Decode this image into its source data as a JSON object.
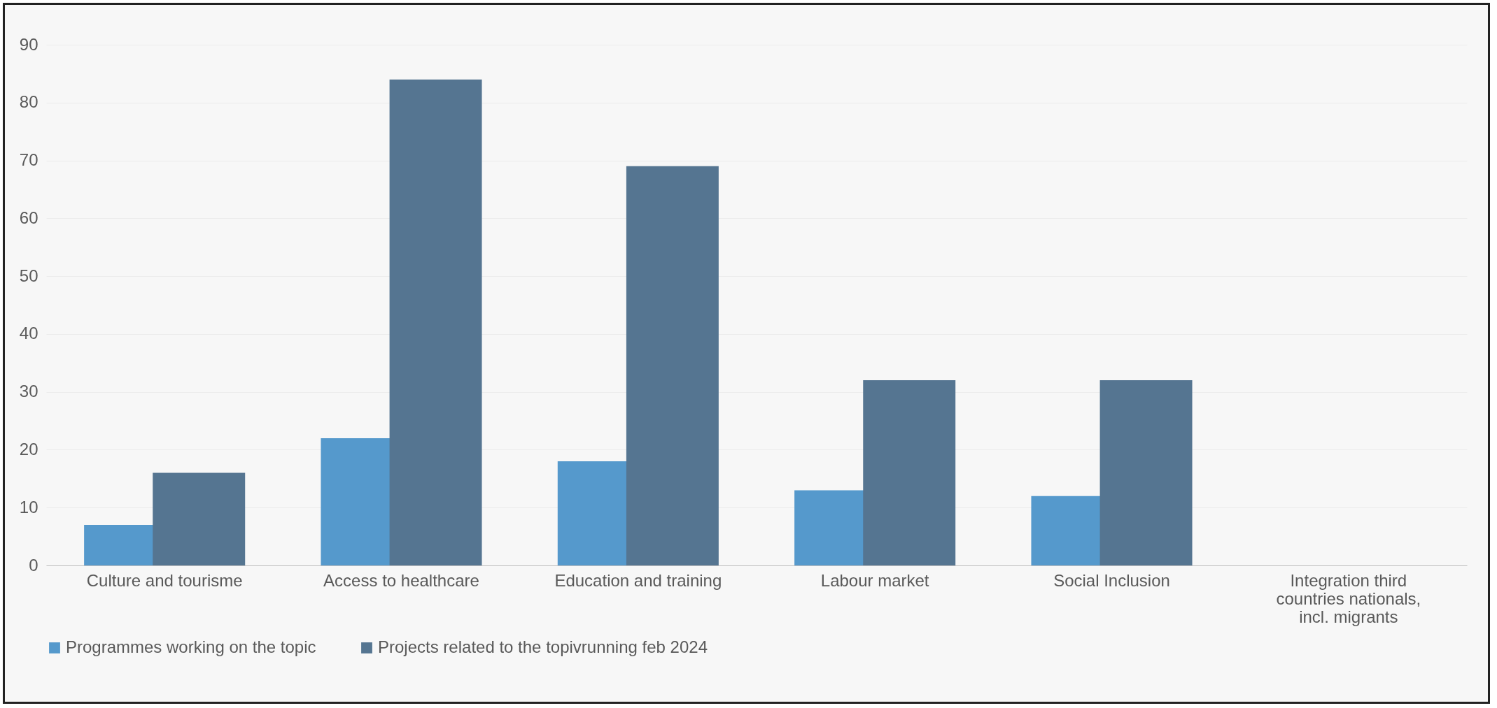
{
  "chart_data": {
    "type": "bar",
    "categories": [
      "Culture and  tourisme",
      "Access to healthcare",
      "Education and training",
      "Labour market",
      "Social Inclusion",
      "Integration third countries nationals, incl. migrants"
    ],
    "series": [
      {
        "name": "Programmes working on the topic",
        "color": "#5599cc",
        "values": [
          7,
          22,
          18,
          13,
          12,
          null
        ]
      },
      {
        "name": "Projects related to the topivrunning feb 2024",
        "color": "#557591",
        "values": [
          16,
          84,
          69,
          32,
          32,
          null
        ]
      }
    ],
    "ylim": [
      0,
      90
    ],
    "yticks": [
      0,
      10,
      20,
      30,
      40,
      50,
      60,
      70,
      80,
      90
    ],
    "grid": "y",
    "legend": "bottom"
  }
}
